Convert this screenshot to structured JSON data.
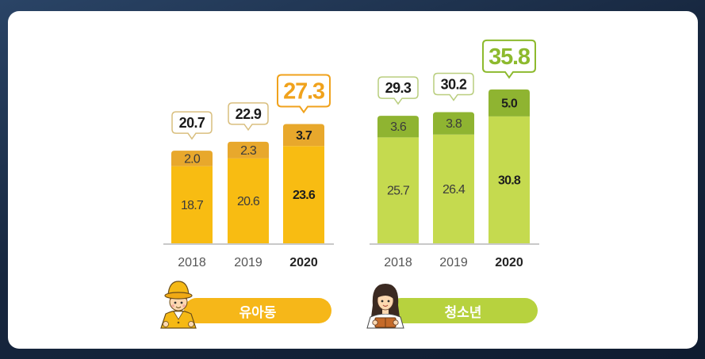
{
  "chart_data": [
    {
      "type": "bar",
      "stacked": true,
      "label": "유아동",
      "categories": [
        "2018",
        "2019",
        "2020"
      ],
      "series": [
        {
          "values": [
            18.7,
            20.6,
            23.6
          ],
          "color": "#F8BC12"
        },
        {
          "values": [
            2.0,
            2.3,
            3.7
          ],
          "color": "#E8A82C"
        }
      ],
      "totals": [
        20.7,
        22.9,
        27.3
      ],
      "highlight_category": "2020",
      "highlight_color": "#F0A21C",
      "callout_border_color": "#D9BF7F",
      "label_pill_color": "#F6B719",
      "icon": "child-icon",
      "legend": "none",
      "grid": false
    },
    {
      "type": "bar",
      "stacked": true,
      "label": "청소년",
      "categories": [
        "2018",
        "2019",
        "2020"
      ],
      "series": [
        {
          "values": [
            25.7,
            26.4,
            30.8
          ],
          "color": "#C5DA4F"
        },
        {
          "values": [
            3.6,
            3.8,
            5.0
          ],
          "color": "#8FB431"
        }
      ],
      "totals": [
        29.3,
        30.2,
        35.8
      ],
      "highlight_category": "2020",
      "highlight_color": "#8DBA2E",
      "callout_border_color": "#B9CE7E",
      "label_pill_color": "#B7D23E",
      "icon": "teen-girl-icon",
      "legend": "none",
      "grid": false
    }
  ]
}
